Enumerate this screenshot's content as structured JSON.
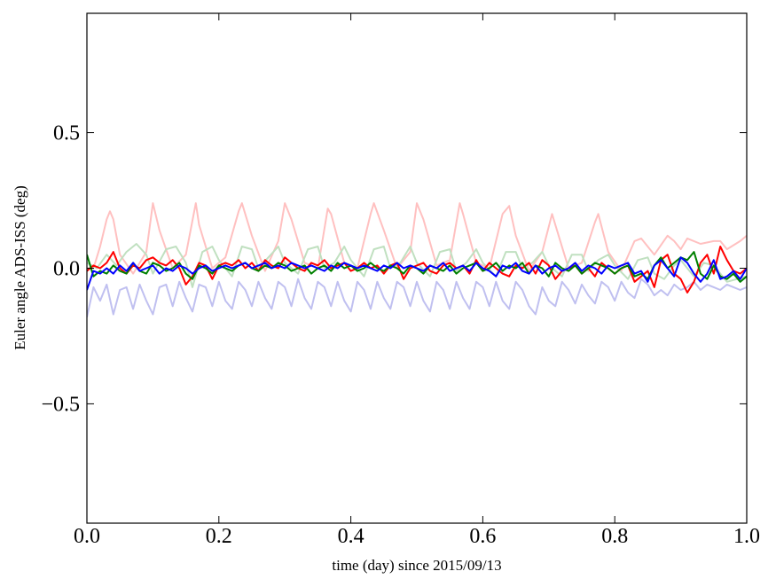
{
  "chart_data": {
    "type": "line",
    "xlabel": "time (day) since 2015/09/13",
    "ylabel": "Euler angle ADS-ISS (deg)",
    "xlim": [
      0.0,
      1.0
    ],
    "ylim": [
      -0.94,
      0.94
    ],
    "xticks": [
      0.0,
      0.2,
      0.4,
      0.6,
      0.8,
      1.0
    ],
    "xtick_labels": [
      "0.0",
      "0.2",
      "0.4",
      "0.6",
      "0.8",
      "1.0"
    ],
    "yticks": [
      -0.5,
      0.0,
      0.5
    ],
    "ytick_labels": [
      "−0.5",
      "0.0",
      "0.5"
    ],
    "grid": false,
    "series": [
      {
        "color": "#ffc0c0",
        "x": [
          0.0,
          0.01,
          0.02,
          0.03,
          0.035,
          0.04,
          0.05,
          0.07,
          0.09,
          0.1,
          0.11,
          0.13,
          0.15,
          0.165,
          0.17,
          0.19,
          0.21,
          0.23,
          0.235,
          0.25,
          0.27,
          0.29,
          0.3,
          0.31,
          0.33,
          0.35,
          0.365,
          0.37,
          0.39,
          0.41,
          0.43,
          0.435,
          0.45,
          0.47,
          0.49,
          0.5,
          0.51,
          0.53,
          0.55,
          0.565,
          0.57,
          0.59,
          0.61,
          0.63,
          0.64,
          0.65,
          0.67,
          0.69,
          0.705,
          0.71,
          0.73,
          0.75,
          0.77,
          0.775,
          0.79,
          0.81,
          0.83,
          0.84,
          0.86,
          0.88,
          0.89,
          0.9,
          0.91,
          0.93,
          0.95,
          0.96,
          0.97,
          0.99,
          1.0
        ],
        "y": [
          0.0,
          0.0,
          0.08,
          0.18,
          0.21,
          0.18,
          0.05,
          -0.02,
          0.06,
          0.24,
          0.14,
          0.0,
          0.05,
          0.24,
          0.16,
          0.0,
          0.04,
          0.21,
          0.24,
          0.12,
          -0.01,
          0.1,
          0.24,
          0.18,
          0.02,
          0.0,
          0.22,
          0.2,
          0.02,
          0.0,
          0.2,
          0.24,
          0.14,
          0.0,
          0.06,
          0.24,
          0.18,
          0.01,
          0.03,
          0.24,
          0.2,
          0.02,
          0.0,
          0.2,
          0.23,
          0.12,
          -0.01,
          0.06,
          0.2,
          0.16,
          0.0,
          0.02,
          0.17,
          0.2,
          0.06,
          -0.01,
          0.1,
          0.11,
          0.05,
          0.12,
          0.1,
          0.07,
          0.11,
          0.09,
          0.1,
          0.1,
          0.07,
          0.1,
          0.12
        ]
      },
      {
        "color": "#c0e0c0",
        "x": [
          0.0,
          0.015,
          0.03,
          0.045,
          0.06,
          0.075,
          0.09,
          0.1,
          0.12,
          0.135,
          0.15,
          0.16,
          0.175,
          0.19,
          0.2,
          0.22,
          0.235,
          0.25,
          0.26,
          0.275,
          0.29,
          0.3,
          0.32,
          0.335,
          0.35,
          0.36,
          0.375,
          0.39,
          0.4,
          0.42,
          0.435,
          0.45,
          0.46,
          0.475,
          0.49,
          0.5,
          0.52,
          0.535,
          0.55,
          0.56,
          0.575,
          0.59,
          0.6,
          0.62,
          0.635,
          0.65,
          0.66,
          0.675,
          0.69,
          0.7,
          0.72,
          0.735,
          0.75,
          0.76,
          0.775,
          0.79,
          0.8,
          0.82,
          0.835,
          0.85,
          0.86,
          0.875,
          0.89,
          0.9,
          0.92,
          0.935,
          0.95,
          0.97,
          1.0
        ],
        "y": [
          0.02,
          0.0,
          0.05,
          0.01,
          0.06,
          0.09,
          0.05,
          -0.02,
          0.07,
          0.08,
          0.02,
          -0.07,
          0.06,
          0.08,
          0.03,
          -0.03,
          0.08,
          0.07,
          0.0,
          0.04,
          0.08,
          0.02,
          -0.02,
          0.07,
          0.08,
          0.0,
          0.02,
          0.08,
          0.03,
          -0.03,
          0.07,
          0.08,
          0.0,
          0.02,
          0.08,
          0.02,
          -0.03,
          0.06,
          0.07,
          -0.01,
          0.02,
          0.07,
          0.02,
          -0.03,
          0.06,
          0.06,
          0.0,
          0.02,
          0.06,
          0.01,
          -0.03,
          0.05,
          0.05,
          -0.01,
          0.03,
          0.05,
          0.01,
          -0.04,
          0.03,
          0.04,
          -0.02,
          -0.04,
          0.01,
          0.03,
          -0.03,
          0.02,
          0.01,
          -0.05,
          -0.03
        ]
      },
      {
        "color": "#c0c0f0",
        "x": [
          0.0,
          0.01,
          0.02,
          0.03,
          0.04,
          0.05,
          0.06,
          0.07,
          0.08,
          0.09,
          0.1,
          0.11,
          0.12,
          0.13,
          0.14,
          0.15,
          0.16,
          0.17,
          0.18,
          0.19,
          0.2,
          0.21,
          0.22,
          0.23,
          0.24,
          0.25,
          0.26,
          0.27,
          0.28,
          0.29,
          0.3,
          0.31,
          0.32,
          0.33,
          0.34,
          0.35,
          0.36,
          0.37,
          0.38,
          0.39,
          0.4,
          0.41,
          0.42,
          0.43,
          0.44,
          0.45,
          0.46,
          0.47,
          0.48,
          0.49,
          0.5,
          0.51,
          0.52,
          0.53,
          0.54,
          0.55,
          0.56,
          0.57,
          0.58,
          0.59,
          0.6,
          0.61,
          0.62,
          0.63,
          0.64,
          0.65,
          0.66,
          0.67,
          0.68,
          0.69,
          0.7,
          0.71,
          0.72,
          0.73,
          0.74,
          0.75,
          0.76,
          0.77,
          0.78,
          0.79,
          0.8,
          0.81,
          0.82,
          0.83,
          0.84,
          0.85,
          0.86,
          0.87,
          0.88,
          0.89,
          0.9,
          0.91,
          0.92,
          0.93,
          0.94,
          0.95,
          0.96,
          0.97,
          0.98,
          0.99,
          1.0
        ],
        "y": [
          -0.18,
          -0.07,
          -0.12,
          -0.06,
          -0.17,
          -0.08,
          -0.07,
          -0.15,
          -0.06,
          -0.12,
          -0.17,
          -0.07,
          -0.06,
          -0.14,
          -0.05,
          -0.11,
          -0.16,
          -0.06,
          -0.07,
          -0.14,
          -0.05,
          -0.12,
          -0.15,
          -0.05,
          -0.08,
          -0.14,
          -0.05,
          -0.11,
          -0.15,
          -0.05,
          -0.07,
          -0.14,
          -0.04,
          -0.11,
          -0.15,
          -0.05,
          -0.07,
          -0.14,
          -0.05,
          -0.12,
          -0.16,
          -0.05,
          -0.08,
          -0.15,
          -0.05,
          -0.11,
          -0.15,
          -0.05,
          -0.07,
          -0.14,
          -0.05,
          -0.12,
          -0.16,
          -0.05,
          -0.08,
          -0.15,
          -0.05,
          -0.11,
          -0.15,
          -0.05,
          -0.07,
          -0.14,
          -0.05,
          -0.12,
          -0.15,
          -0.05,
          -0.08,
          -0.14,
          -0.17,
          -0.07,
          -0.12,
          -0.14,
          -0.05,
          -0.08,
          -0.13,
          -0.06,
          -0.1,
          -0.13,
          -0.05,
          -0.07,
          -0.12,
          -0.05,
          -0.09,
          -0.11,
          -0.04,
          -0.06,
          -0.1,
          -0.08,
          -0.1,
          -0.06,
          -0.08,
          -0.07,
          -0.05,
          -0.08,
          -0.06,
          -0.07,
          -0.08,
          -0.06,
          -0.07,
          -0.08,
          -0.07
        ]
      },
      {
        "color": "#ff0000",
        "x": [
          0.0,
          0.01,
          0.02,
          0.03,
          0.04,
          0.05,
          0.06,
          0.07,
          0.08,
          0.09,
          0.1,
          0.11,
          0.12,
          0.13,
          0.14,
          0.15,
          0.16,
          0.17,
          0.18,
          0.19,
          0.2,
          0.21,
          0.22,
          0.23,
          0.24,
          0.25,
          0.26,
          0.27,
          0.28,
          0.29,
          0.3,
          0.31,
          0.32,
          0.33,
          0.34,
          0.35,
          0.36,
          0.37,
          0.38,
          0.39,
          0.4,
          0.41,
          0.42,
          0.43,
          0.44,
          0.45,
          0.46,
          0.47,
          0.48,
          0.49,
          0.5,
          0.51,
          0.52,
          0.53,
          0.54,
          0.55,
          0.56,
          0.57,
          0.58,
          0.59,
          0.6,
          0.61,
          0.62,
          0.63,
          0.64,
          0.65,
          0.66,
          0.67,
          0.68,
          0.69,
          0.7,
          0.71,
          0.72,
          0.73,
          0.74,
          0.75,
          0.76,
          0.77,
          0.78,
          0.79,
          0.8,
          0.81,
          0.82,
          0.83,
          0.84,
          0.85,
          0.86,
          0.87,
          0.88,
          0.89,
          0.9,
          0.91,
          0.92,
          0.93,
          0.94,
          0.95,
          0.96,
          0.97,
          0.98,
          0.99,
          1.0
        ],
        "y": [
          -0.01,
          0.01,
          0.0,
          0.02,
          0.06,
          0.0,
          -0.02,
          0.01,
          0.0,
          0.03,
          0.04,
          0.02,
          0.01,
          0.03,
          0.0,
          -0.06,
          -0.03,
          0.02,
          0.01,
          -0.04,
          0.01,
          0.02,
          0.01,
          0.03,
          0.0,
          0.02,
          -0.01,
          0.03,
          0.01,
          0.0,
          0.04,
          0.02,
          0.0,
          -0.01,
          0.02,
          0.01,
          0.03,
          0.0,
          0.01,
          0.02,
          -0.01,
          0.0,
          0.02,
          0.0,
          0.01,
          -0.02,
          0.01,
          0.02,
          -0.04,
          0.0,
          0.01,
          0.02,
          -0.01,
          -0.02,
          0.01,
          0.02,
          0.0,
          0.01,
          -0.02,
          0.03,
          -0.01,
          0.02,
          0.0,
          -0.02,
          -0.03,
          0.01,
          0.0,
          0.02,
          -0.02,
          0.03,
          0.01,
          -0.04,
          -0.01,
          0.0,
          0.01,
          -0.02,
          0.0,
          -0.03,
          0.02,
          0.0,
          -0.02,
          0.0,
          0.01,
          -0.05,
          -0.03,
          -0.01,
          -0.07,
          0.03,
          0.05,
          -0.02,
          -0.04,
          -0.09,
          -0.05,
          0.02,
          0.05,
          -0.02,
          0.08,
          0.03,
          -0.01,
          -0.02,
          0.0
        ]
      },
      {
        "color": "#008000",
        "x": [
          0.0,
          0.01,
          0.02,
          0.03,
          0.04,
          0.05,
          0.06,
          0.07,
          0.08,
          0.09,
          0.1,
          0.11,
          0.12,
          0.13,
          0.14,
          0.15,
          0.16,
          0.17,
          0.18,
          0.19,
          0.2,
          0.21,
          0.22,
          0.23,
          0.24,
          0.25,
          0.26,
          0.27,
          0.28,
          0.29,
          0.3,
          0.31,
          0.32,
          0.33,
          0.34,
          0.35,
          0.36,
          0.37,
          0.38,
          0.39,
          0.4,
          0.41,
          0.42,
          0.43,
          0.44,
          0.45,
          0.46,
          0.47,
          0.48,
          0.49,
          0.5,
          0.51,
          0.52,
          0.53,
          0.54,
          0.55,
          0.56,
          0.57,
          0.58,
          0.59,
          0.6,
          0.61,
          0.62,
          0.63,
          0.64,
          0.65,
          0.66,
          0.67,
          0.68,
          0.69,
          0.7,
          0.71,
          0.72,
          0.73,
          0.74,
          0.75,
          0.76,
          0.77,
          0.78,
          0.79,
          0.8,
          0.81,
          0.82,
          0.83,
          0.84,
          0.85,
          0.86,
          0.87,
          0.88,
          0.89,
          0.9,
          0.91,
          0.92,
          0.93,
          0.94,
          0.95,
          0.96,
          0.97,
          0.98,
          0.99,
          1.0
        ],
        "y": [
          0.05,
          -0.03,
          -0.01,
          -0.02,
          0.01,
          -0.01,
          -0.02,
          0.02,
          -0.01,
          -0.02,
          0.02,
          0.01,
          -0.01,
          0.0,
          0.02,
          -0.02,
          -0.04,
          0.01,
          0.0,
          -0.02,
          0.01,
          0.0,
          -0.01,
          0.01,
          0.02,
          0.0,
          -0.01,
          0.01,
          0.0,
          0.02,
          0.01,
          -0.01,
          0.0,
          0.01,
          -0.02,
          0.0,
          0.01,
          -0.01,
          0.02,
          0.0,
          0.01,
          -0.01,
          0.0,
          0.02,
          0.0,
          -0.01,
          0.01,
          0.0,
          -0.02,
          0.01,
          0.0,
          -0.02,
          0.01,
          0.0,
          -0.01,
          0.01,
          -0.02,
          0.0,
          0.01,
          0.02,
          -0.01,
          0.0,
          0.02,
          -0.01,
          0.01,
          0.0,
          0.02,
          -0.02,
          0.01,
          0.0,
          -0.03,
          0.02,
          0.0,
          -0.01,
          0.01,
          -0.02,
          0.0,
          0.02,
          0.01,
          0.0,
          -0.02,
          0.0,
          0.01,
          -0.03,
          -0.02,
          -0.04,
          0.01,
          0.04,
          0.0,
          0.02,
          0.04,
          0.03,
          0.06,
          -0.02,
          -0.04,
          0.01,
          -0.03,
          -0.04,
          -0.02,
          -0.05,
          -0.03
        ]
      },
      {
        "color": "#0000ff",
        "x": [
          0.0,
          0.01,
          0.02,
          0.03,
          0.04,
          0.05,
          0.06,
          0.07,
          0.08,
          0.09,
          0.1,
          0.11,
          0.12,
          0.13,
          0.14,
          0.15,
          0.16,
          0.17,
          0.18,
          0.19,
          0.2,
          0.21,
          0.22,
          0.23,
          0.24,
          0.25,
          0.26,
          0.27,
          0.28,
          0.29,
          0.3,
          0.31,
          0.32,
          0.33,
          0.34,
          0.35,
          0.36,
          0.37,
          0.38,
          0.39,
          0.4,
          0.41,
          0.42,
          0.43,
          0.44,
          0.45,
          0.46,
          0.47,
          0.48,
          0.49,
          0.5,
          0.51,
          0.52,
          0.53,
          0.54,
          0.55,
          0.56,
          0.57,
          0.58,
          0.59,
          0.6,
          0.61,
          0.62,
          0.63,
          0.64,
          0.65,
          0.66,
          0.67,
          0.68,
          0.69,
          0.7,
          0.71,
          0.72,
          0.73,
          0.74,
          0.75,
          0.76,
          0.77,
          0.78,
          0.79,
          0.8,
          0.81,
          0.82,
          0.83,
          0.84,
          0.85,
          0.86,
          0.87,
          0.88,
          0.89,
          0.9,
          0.91,
          0.92,
          0.93,
          0.94,
          0.95,
          0.96,
          0.97,
          0.98,
          0.99,
          1.0
        ],
        "y": [
          -0.08,
          -0.01,
          -0.02,
          0.0,
          -0.02,
          0.01,
          -0.01,
          0.02,
          -0.01,
          0.0,
          0.01,
          -0.02,
          0.0,
          -0.01,
          0.01,
          0.0,
          -0.02,
          0.0,
          0.01,
          -0.01,
          0.0,
          0.01,
          0.0,
          0.01,
          0.02,
          0.0,
          0.01,
          0.02,
          0.0,
          0.01,
          0.0,
          0.02,
          0.01,
          0.0,
          0.01,
          0.0,
          -0.01,
          0.01,
          0.0,
          0.02,
          0.01,
          0.0,
          0.01,
          0.0,
          -0.01,
          0.01,
          0.0,
          0.02,
          0.0,
          0.01,
          0.0,
          -0.01,
          0.01,
          0.0,
          0.02,
          -0.01,
          0.0,
          0.01,
          -0.01,
          0.02,
          0.0,
          -0.01,
          -0.03,
          0.01,
          0.0,
          0.02,
          -0.01,
          -0.02,
          0.01,
          -0.02,
          0.0,
          0.01,
          -0.01,
          0.0,
          0.02,
          -0.01,
          0.01,
          0.0,
          -0.02,
          0.01,
          0.0,
          0.01,
          0.02,
          -0.02,
          -0.01,
          -0.05,
          0.01,
          0.03,
          0.0,
          -0.03,
          0.04,
          0.02,
          -0.02,
          -0.05,
          -0.02,
          0.03,
          -0.04,
          -0.03,
          -0.01,
          -0.04,
          0.0
        ]
      }
    ]
  }
}
